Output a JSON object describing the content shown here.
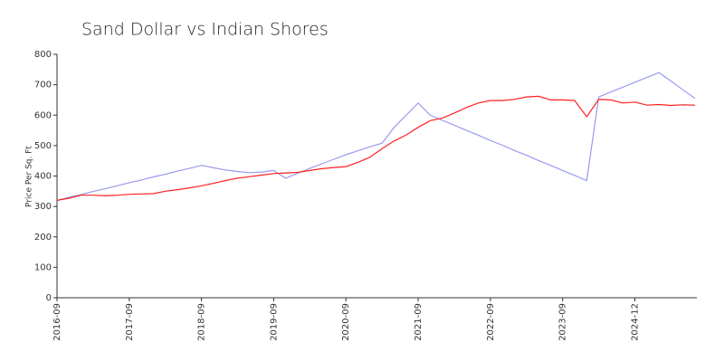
{
  "chart_data": {
    "type": "line",
    "title": "Sand Dollar vs Indian Shores",
    "y_label": "Price Per Sq. Ft",
    "x": [
      "2016-09",
      "2016-11",
      "2017-01",
      "2017-03",
      "2017-05",
      "2017-07",
      "2017-09",
      "2017-11",
      "2018-01",
      "2018-03",
      "2018-05",
      "2018-07",
      "2018-09",
      "2018-11",
      "2019-01",
      "2019-03",
      "2019-05",
      "2019-07",
      "2019-09",
      "2019-11",
      "2020-01",
      "2020-03",
      "2020-05",
      "2020-07",
      "2020-09",
      "2020-11",
      "2021-01",
      "2021-03",
      "2021-05",
      "2021-07",
      "2021-09",
      "2021-11",
      "2022-01",
      "2022-03",
      "2022-05",
      "2022-07",
      "2022-09",
      "2022-11",
      "2023-01",
      "2023-03",
      "2023-05",
      "2023-07",
      "2023-09",
      "2023-11",
      "2024-02",
      "2024-05",
      "2024-07",
      "2024-10",
      "2024-12",
      "2025-02",
      "2025-04",
      "2025-06",
      "2025-08",
      "2025-10"
    ],
    "series": [
      {
        "name": "Sand Dollar",
        "color": "#9a9aee",
        "values": [
          320,
          330,
          339,
          349,
          358,
          368,
          378,
          387,
          397,
          406,
          416,
          425,
          435,
          427,
          420,
          415,
          411,
          413,
          418,
          393,
          409,
          425,
          440,
          455,
          470,
          483,
          496,
          508,
          560,
          600,
          640,
          600,
          583,
          567,
          550,
          534,
          517,
          501,
          484,
          468,
          451,
          435,
          418,
          402,
          385,
          660,
          676,
          692,
          708,
          724,
          740,
          712,
          683,
          655
        ]
      },
      {
        "name": "Indian Shores",
        "color": "#ff2020",
        "values": [
          320,
          327,
          337,
          337,
          335,
          337,
          340,
          341,
          342,
          350,
          355,
          361,
          368,
          376,
          385,
          393,
          398,
          403,
          408,
          410,
          412,
          418,
          424,
          428,
          431,
          445,
          462,
          490,
          515,
          535,
          560,
          582,
          590,
          607,
          625,
          640,
          648,
          648,
          652,
          660,
          662,
          650,
          650,
          648,
          595,
          652,
          650,
          640,
          643,
          633,
          635,
          632,
          634,
          633
        ]
      }
    ],
    "xticks": [
      "2016-09",
      "2017-09",
      "2018-09",
      "2019-09",
      "2020-09",
      "2021-09",
      "2022-09",
      "2023-09",
      "2024-12"
    ],
    "ylim": [
      0,
      800
    ],
    "yticks": [
      0,
      100,
      200,
      300,
      400,
      500,
      600,
      700,
      800
    ]
  }
}
